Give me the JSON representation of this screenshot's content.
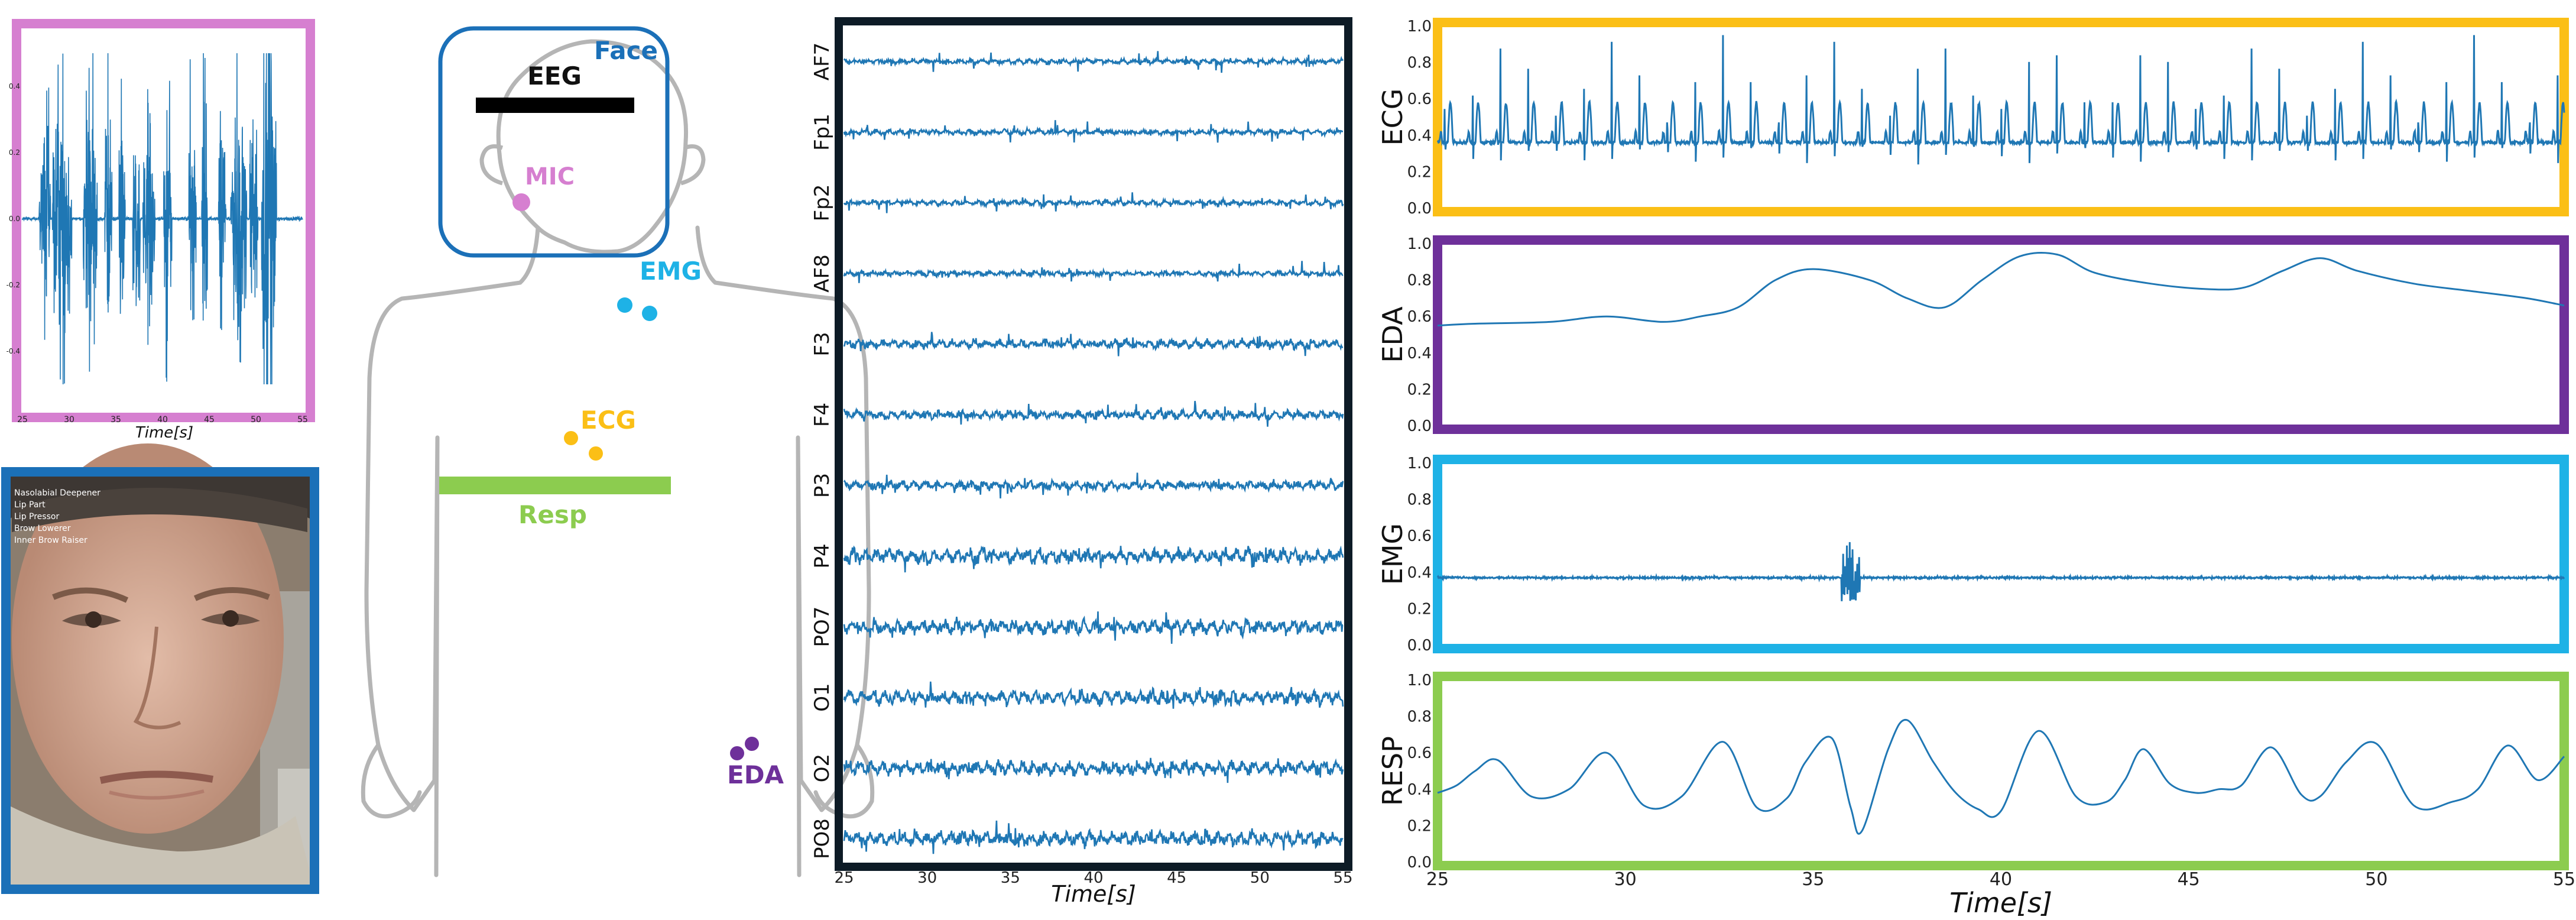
{
  "colors": {
    "signal": "#1f77b4",
    "mic_border": "#d67fd0",
    "face_border": "#1b70b8",
    "eeg_border": "#0d1b26",
    "ecg_border": "#fbbf16",
    "eda_border": "#6e309a",
    "emg_border": "#1eb2e6",
    "resp_border": "#8ccc4f",
    "body_outline": "#b5b5b5"
  },
  "body_diagram": {
    "face": "Face",
    "eeg": "EEG",
    "mic": "MIC",
    "emg": "EMG",
    "ecg": "ECG",
    "resp": "Resp",
    "eda": "EDA"
  },
  "face_panel": {
    "action_units": [
      "Nasolabial Deepener",
      "Lip Part",
      "Lip Pressor",
      "Brow Lowerer",
      "Inner Brow Raiser"
    ]
  },
  "chart_data": [
    {
      "type": "line",
      "panel": "audio",
      "x_ticks": [
        25,
        30,
        35,
        40,
        45,
        50,
        55
      ],
      "xlim": [
        25,
        55
      ],
      "y_ticks": [
        "0.4",
        "0.2",
        "0.0",
        "-0.2",
        "-0.4"
      ],
      "ylim": [
        -0.5,
        0.5
      ],
      "xlabel": "Time[s]",
      "active_segments": [
        [
          26.8,
          28.0
        ],
        [
          28.2,
          30.3
        ],
        [
          31.5,
          33.0
        ],
        [
          33.8,
          34.6
        ],
        [
          35.3,
          36.0
        ],
        [
          36.8,
          37.6
        ],
        [
          37.9,
          39.2
        ],
        [
          40.1,
          41.0
        ],
        [
          42.8,
          43.6
        ],
        [
          44.2,
          44.8
        ],
        [
          46.0,
          46.8
        ],
        [
          47.3,
          49.0
        ],
        [
          49.3,
          50.2
        ],
        [
          50.6,
          52.2
        ]
      ]
    },
    {
      "type": "line",
      "panel": "eeg",
      "channels": [
        "AF7",
        "Fp1",
        "Fp2",
        "AF8",
        "F3",
        "F4",
        "P3",
        "P4",
        "PO7",
        "O1",
        "O2",
        "PO8"
      ],
      "x_ticks": [
        25,
        30,
        35,
        40,
        45,
        50,
        55
      ],
      "xlim": [
        25,
        55
      ],
      "xlabel": "Time[s]"
    },
    {
      "type": "line",
      "panel": "ecg",
      "ylabel": "ECG",
      "xlim": [
        25,
        55
      ],
      "ylim": [
        0,
        1
      ],
      "y_ticks": [
        "0.0",
        "0.2",
        "0.4",
        "0.6",
        "0.8",
        "1.0"
      ],
      "baseline": 0.36,
      "peak": 0.95,
      "beats_per_second": 1.35
    },
    {
      "type": "line",
      "panel": "eda",
      "ylabel": "EDA",
      "xlim": [
        25,
        55
      ],
      "ylim": [
        0,
        1
      ],
      "y_ticks": [
        "0.0",
        "0.2",
        "0.4",
        "0.6",
        "0.8",
        "1.0"
      ],
      "x": [
        25,
        26,
        28,
        29.5,
        31,
        32,
        33,
        34,
        35,
        36.5,
        37.5,
        38.5,
        39.5,
        40.5,
        41.5,
        42.5,
        44,
        45.5,
        46.5,
        47.5,
        48.5,
        49.5,
        51,
        52.5,
        54,
        55
      ],
      "y": [
        0.55,
        0.56,
        0.57,
        0.6,
        0.57,
        0.6,
        0.65,
        0.8,
        0.86,
        0.8,
        0.7,
        0.65,
        0.8,
        0.93,
        0.94,
        0.84,
        0.78,
        0.75,
        0.76,
        0.85,
        0.92,
        0.85,
        0.78,
        0.74,
        0.7,
        0.66
      ]
    },
    {
      "type": "line",
      "panel": "emg",
      "ylabel": "EMG",
      "xlim": [
        25,
        55
      ],
      "ylim": [
        0,
        1
      ],
      "y_ticks": [
        "0.0",
        "0.2",
        "0.4",
        "0.6",
        "0.8",
        "1.0"
      ],
      "baseline": 0.37,
      "spike_at": 36,
      "spike_range": [
        0.24,
        0.57
      ]
    },
    {
      "type": "line",
      "panel": "resp",
      "ylabel": "RESP",
      "xlim": [
        25,
        55
      ],
      "ylim": [
        0,
        1
      ],
      "y_ticks": [
        "0.0",
        "0.2",
        "0.4",
        "0.6",
        "0.8",
        "1.0"
      ],
      "x_ticks": [
        25,
        30,
        35,
        40,
        45,
        50,
        55
      ],
      "xlabel": "Time[s]",
      "x": [
        25,
        25.5,
        26,
        26.6,
        27.5,
        28.5,
        29.5,
        30.5,
        31.5,
        32.6,
        33.5,
        34.3,
        34.8,
        35.5,
        36.0,
        36.3,
        37.0,
        37.5,
        38.2,
        38.8,
        39.4,
        40.0,
        41.0,
        42.0,
        42.8,
        43.3,
        43.8,
        44.5,
        45.2,
        45.8,
        46.4,
        47.2,
        48.0,
        48.5,
        49.2,
        50.0,
        51.0,
        52.0,
        52.7,
        53.5,
        54.3,
        55.0
      ],
      "y": [
        0.38,
        0.42,
        0.5,
        0.56,
        0.36,
        0.4,
        0.6,
        0.31,
        0.36,
        0.66,
        0.3,
        0.35,
        0.55,
        0.68,
        0.3,
        0.17,
        0.62,
        0.78,
        0.55,
        0.38,
        0.29,
        0.28,
        0.72,
        0.36,
        0.33,
        0.45,
        0.62,
        0.43,
        0.38,
        0.4,
        0.42,
        0.63,
        0.37,
        0.36,
        0.55,
        0.65,
        0.31,
        0.33,
        0.4,
        0.64,
        0.45,
        0.58
      ]
    }
  ]
}
